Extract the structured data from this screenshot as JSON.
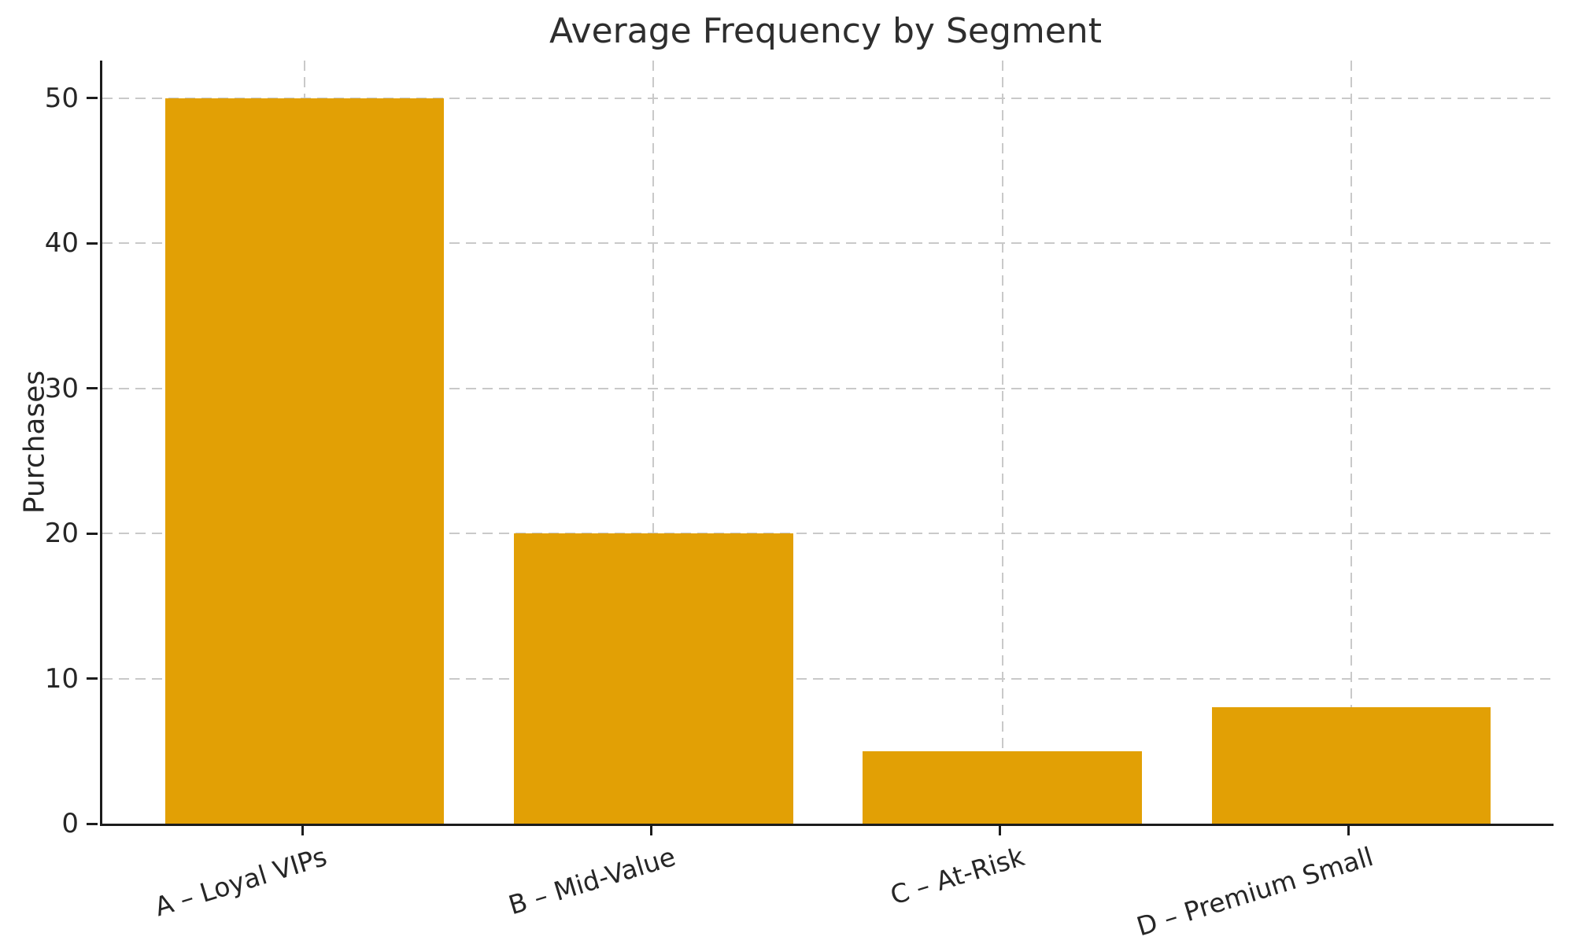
{
  "chart_data": {
    "type": "bar",
    "title": "Average Frequency by Segment",
    "xlabel": "",
    "ylabel": "Purchases",
    "categories": [
      "A – Loyal VIPs",
      "B – Mid-Value",
      "C – At-Risk",
      "D – Premium Small"
    ],
    "values": [
      50,
      20,
      5,
      8
    ],
    "yticks": [
      0,
      10,
      20,
      30,
      40,
      50
    ],
    "ylim": [
      0,
      52.6
    ],
    "bar_color": "#E2A005",
    "grid": "dashed",
    "grid_color": "#c9c9c9",
    "axis_color": "#1c1c1c",
    "text_color": "#262626",
    "background": "#ffffff",
    "legend": "none",
    "x_tick_label_rotation_deg": 17
  }
}
